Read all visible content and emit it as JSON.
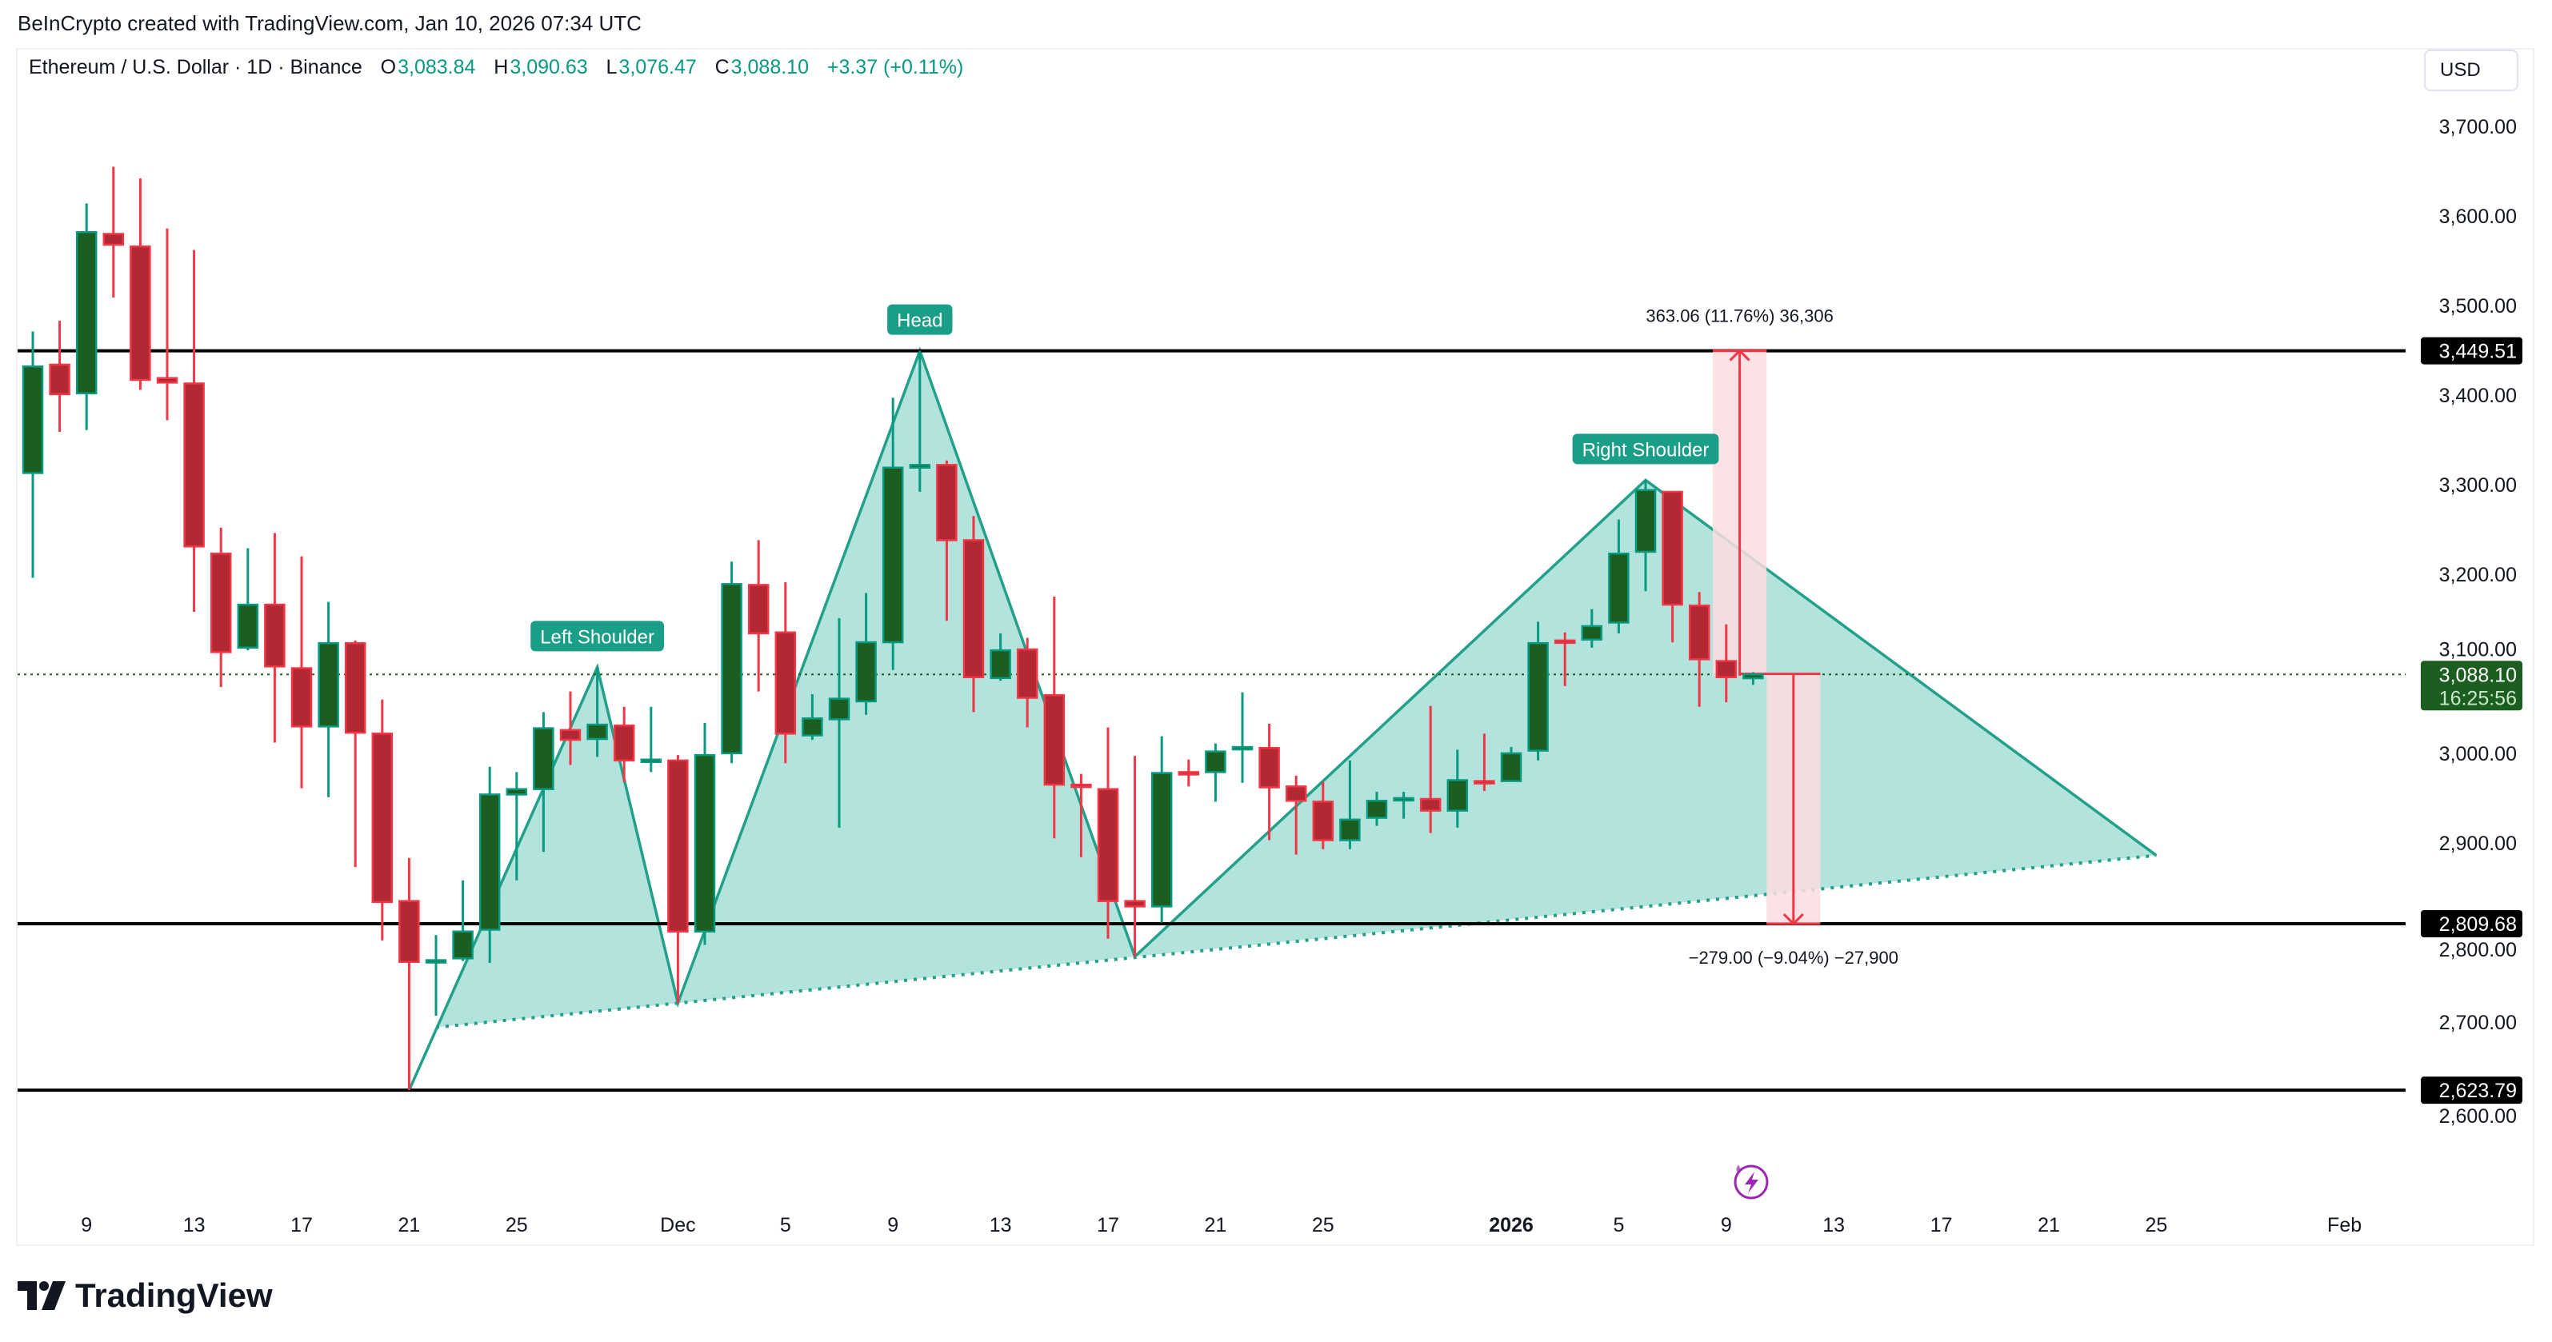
{
  "header": {
    "credit": "BeInCrypto created with TradingView.com, Jan 10, 2026 07:34 UTC",
    "symbol": "Ethereum / U.S. Dollar · 1D · Binance",
    "o_label": "O",
    "o": "3,083.84",
    "h_label": "H",
    "h": "3,090.63",
    "l_label": "L",
    "l": "3,076.47",
    "c_label": "C",
    "c": "3,088.10",
    "change": "+3.37 (+0.11%)",
    "currency": "USD"
  },
  "footer": {
    "brand": "TradingView"
  },
  "colors": {
    "up_body": "#1b5e20",
    "up_border": "#089981",
    "down_body": "#b22833",
    "down_border": "#f23645",
    "pattern_fill": "#b2e3dc",
    "pattern_line": "#22a08a",
    "label_bg": "#1a9e87",
    "measure": "#f23645",
    "measure_fill": "#fddde0",
    "last_price_bg": "#1b5e20",
    "hline": "#000000",
    "alert_icon": "#9c27b0"
  },
  "chart_data": {
    "type": "candlestick",
    "title": "Ethereum / U.S. Dollar · 1D · Binance",
    "ylim": [
      2492,
      3786
    ],
    "xlim": [
      "2025-11-06",
      "2026-02-03"
    ],
    "grid": false,
    "y_ticks": [
      "3,700.00",
      "3,600.00",
      "3,500.00",
      "3,400.00",
      "3,300.00",
      "3,200.00",
      "3,100.00",
      "3,000.00",
      "2,900.00",
      "2,800.00",
      "2,700.00",
      "2,600.00"
    ],
    "y_tick_values": [
      3700,
      3600,
      3500,
      3400,
      3300,
      3200,
      3100,
      3000,
      2900,
      2800,
      2700,
      2600
    ],
    "x_ticks": [
      {
        "date": "2025-11-09",
        "label": "9"
      },
      {
        "date": "2025-11-13",
        "label": "13"
      },
      {
        "date": "2025-11-17",
        "label": "17"
      },
      {
        "date": "2025-11-21",
        "label": "21"
      },
      {
        "date": "2025-11-25",
        "label": "25"
      },
      {
        "date": "2025-12-01",
        "label": "Dec"
      },
      {
        "date": "2025-12-05",
        "label": "5"
      },
      {
        "date": "2025-12-09",
        "label": "9"
      },
      {
        "date": "2025-12-13",
        "label": "13"
      },
      {
        "date": "2025-12-17",
        "label": "17"
      },
      {
        "date": "2025-12-21",
        "label": "21"
      },
      {
        "date": "2025-12-25",
        "label": "25"
      },
      {
        "date": "2026-01-01",
        "label": "2026",
        "bold": true
      },
      {
        "date": "2026-01-05",
        "label": "5"
      },
      {
        "date": "2026-01-09",
        "label": "9"
      },
      {
        "date": "2026-01-13",
        "label": "13"
      },
      {
        "date": "2026-01-17",
        "label": "17"
      },
      {
        "date": "2026-01-21",
        "label": "21"
      },
      {
        "date": "2026-01-25",
        "label": "25"
      },
      {
        "date": "2026-02-01",
        "label": "Feb"
      }
    ],
    "candles_columns": [
      "date",
      "open",
      "high",
      "low",
      "close"
    ],
    "candles": [
      [
        "2025-11-07",
        3313,
        3471,
        3196,
        3432
      ],
      [
        "2025-11-08",
        3434,
        3483,
        3359,
        3401
      ],
      [
        "2025-11-09",
        3402,
        3614,
        3361,
        3582
      ],
      [
        "2025-11-10",
        3580,
        3655,
        3509,
        3568
      ],
      [
        "2025-11-11",
        3566,
        3642,
        3406,
        3417
      ],
      [
        "2025-11-12",
        3419,
        3586,
        3372,
        3414
      ],
      [
        "2025-11-13",
        3413,
        3562,
        3158,
        3231
      ],
      [
        "2025-11-14",
        3223,
        3252,
        3074,
        3113
      ],
      [
        "2025-11-15",
        3118,
        3229,
        3115,
        3166
      ],
      [
        "2025-11-16",
        3166,
        3246,
        3012,
        3097
      ],
      [
        "2025-11-17",
        3095,
        3220,
        2961,
        3030
      ],
      [
        "2025-11-18",
        3030,
        3169,
        2951,
        3123
      ],
      [
        "2025-11-19",
        3123,
        3126,
        2873,
        3023
      ],
      [
        "2025-11-20",
        3022,
        3060,
        2791,
        2834
      ],
      [
        "2025-11-21",
        2835,
        2883,
        2624,
        2767
      ],
      [
        "2025-11-22",
        2768,
        2797,
        2707,
        2769
      ],
      [
        "2025-11-23",
        2771,
        2858,
        2768,
        2801
      ],
      [
        "2025-11-24",
        2803,
        2985,
        2766,
        2954
      ],
      [
        "2025-11-25",
        2954,
        2979,
        2858,
        2960
      ],
      [
        "2025-11-26",
        2960,
        3046,
        2890,
        3028
      ],
      [
        "2025-11-27",
        3026,
        3069,
        2987,
        3015
      ],
      [
        "2025-11-28",
        3016,
        3097,
        2996,
        3032
      ],
      [
        "2025-11-29",
        3031,
        3052,
        2968,
        2992
      ],
      [
        "2025-11-30",
        2992,
        3052,
        2979,
        2993
      ],
      [
        "2025-12-01",
        2992,
        2998,
        2721,
        2801
      ],
      [
        "2025-12-02",
        2801,
        3034,
        2786,
        2998
      ],
      [
        "2025-12-03",
        3000,
        3214,
        2989,
        3189
      ],
      [
        "2025-12-04",
        3188,
        3238,
        3069,
        3134
      ],
      [
        "2025-12-05",
        3135,
        3191,
        2989,
        3022
      ],
      [
        "2025-12-06",
        3020,
        3066,
        3015,
        3039
      ],
      [
        "2025-12-07",
        3038,
        3151,
        2917,
        3061
      ],
      [
        "2025-12-08",
        3058,
        3179,
        3043,
        3124
      ],
      [
        "2025-12-09",
        3124,
        3397,
        3093,
        3319
      ],
      [
        "2025-12-10",
        3319,
        3449.51,
        3292,
        3322
      ],
      [
        "2025-12-11",
        3322,
        3327,
        3148,
        3238
      ],
      [
        "2025-12-12",
        3238,
        3265,
        3046,
        3085
      ],
      [
        "2025-12-13",
        3084,
        3134,
        3081,
        3115
      ],
      [
        "2025-12-14",
        3116,
        3129,
        3029,
        3062
      ],
      [
        "2025-12-15",
        3065,
        3175,
        2905,
        2965
      ],
      [
        "2025-12-16",
        2965,
        2977,
        2884,
        2963
      ],
      [
        "2025-12-17",
        2960,
        3029,
        2793,
        2835
      ],
      [
        "2025-12-18",
        2835,
        2997,
        2773,
        2829
      ],
      [
        "2025-12-19",
        2829,
        3019,
        2811,
        2978
      ],
      [
        "2025-12-20",
        2979,
        2993,
        2963,
        2978
      ],
      [
        "2025-12-21",
        2979,
        3011,
        2946,
        3002
      ],
      [
        "2025-12-22",
        3006,
        3068,
        2967,
        3007
      ],
      [
        "2025-12-23",
        3006,
        3033,
        2903,
        2962
      ],
      [
        "2025-12-24",
        2963,
        2975,
        2887,
        2947
      ],
      [
        "2025-12-25",
        2946,
        2968,
        2893,
        2903
      ],
      [
        "2025-12-26",
        2903,
        2992,
        2893,
        2926
      ],
      [
        "2025-12-27",
        2928,
        2957,
        2919,
        2947
      ],
      [
        "2025-12-28",
        2949,
        2957,
        2927,
        2950
      ],
      [
        "2025-12-29",
        2949,
        3053,
        2911,
        2936
      ],
      [
        "2025-12-30",
        2936,
        3004,
        2917,
        2970
      ],
      [
        "2025-12-31",
        2969,
        3022,
        2958,
        2968
      ],
      [
        "2026-01-01",
        2969,
        3007,
        2969,
        3000
      ],
      [
        "2026-01-02",
        3003,
        3147,
        2992,
        3123
      ],
      [
        "2026-01-03",
        3126,
        3135,
        3075,
        3125
      ],
      [
        "2026-01-04",
        3127,
        3161,
        3118,
        3142
      ],
      [
        "2026-01-05",
        3146,
        3261,
        3134,
        3223
      ],
      [
        "2026-01-06",
        3225,
        3305,
        3181,
        3294
      ],
      [
        "2026-01-07",
        3292,
        3292,
        3124,
        3166
      ],
      [
        "2026-01-08",
        3165,
        3180,
        3052,
        3105
      ],
      [
        "2026-01-09",
        3103,
        3144,
        3057,
        3085
      ],
      [
        "2026-01-10",
        3083.84,
        3090.63,
        3076.47,
        3088.1
      ]
    ],
    "horizontal_lines": [
      {
        "price": 3449.51,
        "label": "3,449.51"
      },
      {
        "price": 2809.68,
        "label": "2,809.68"
      },
      {
        "price": 2623.79,
        "label": "2,623.79"
      }
    ],
    "last_price": {
      "price": 3088.1,
      "label": "3,088.10",
      "countdown": "16:25:56"
    },
    "pattern": {
      "left_shoulder": {
        "label": "Left Shoulder",
        "start": [
          "2025-11-21",
          2623.79
        ],
        "base": [
          "2025-11-22",
          2694
        ],
        "peak": [
          "2025-11-28",
          3096
        ],
        "end": [
          "2025-12-01",
          2721
        ]
      },
      "head": {
        "label": "Head",
        "start": [
          "2025-12-01",
          2721
        ],
        "peak": [
          "2025-12-10",
          3449.51
        ],
        "end": [
          "2025-12-18",
          2773
        ]
      },
      "right_shoulder": {
        "label": "Right Shoulder",
        "start": [
          "2025-12-18",
          2773
        ],
        "peak": [
          "2026-01-06",
          3305
        ],
        "end": [
          "2026-01-25",
          2886
        ]
      },
      "neckline": {
        "from": [
          "2025-11-22",
          2694
        ],
        "to": [
          "2026-01-25",
          2886
        ]
      }
    },
    "measures": [
      {
        "from_date": "2026-01-09",
        "to_date": "2026-01-11",
        "arrow_date": "2026-01-10",
        "from": 3086.45,
        "to": 3449.51,
        "label": "363.06 (11.76%) 36,306"
      },
      {
        "from_date": "2026-01-11",
        "to_date": "2026-01-13",
        "arrow_date": "2026-01-12",
        "from": 3088.68,
        "to": 2809.68,
        "label": "−279.00 (−9.04%) −27,900"
      }
    ]
  }
}
